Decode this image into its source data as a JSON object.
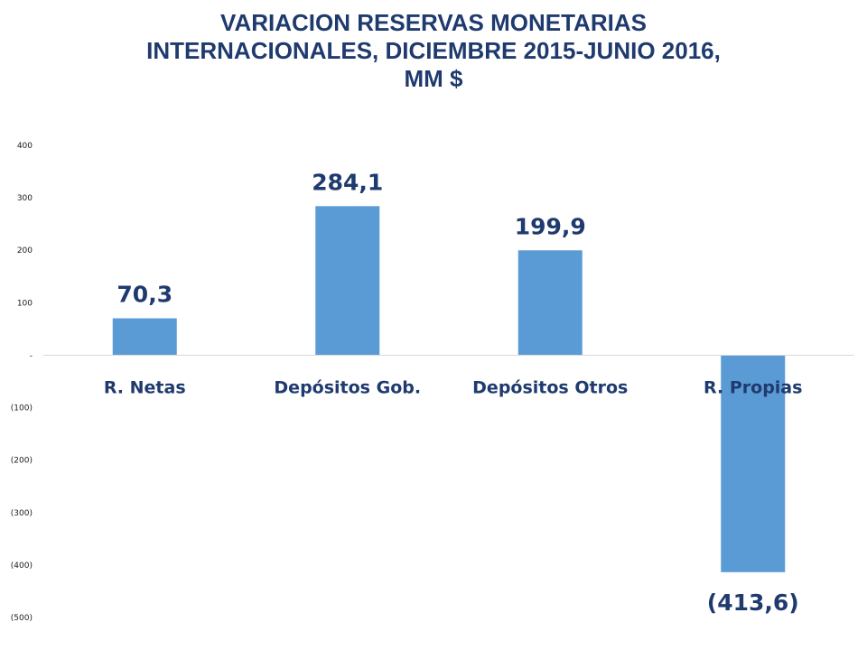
{
  "chart_data": {
    "type": "bar",
    "title_lines": [
      "VARIACION RESERVAS MONETARIAS",
      "INTERNACIONALES, DICIEMBRE 2015-JUNIO 2016,",
      "MM $"
    ],
    "categories": [
      "R. Netas",
      "Depósitos Gob.",
      "Depósitos Otros",
      "R. Propias"
    ],
    "values": [
      70.3,
      284.1,
      199.9,
      -413.6
    ],
    "data_labels": [
      "70,3",
      "284,1",
      "199,9",
      "(413,6)"
    ],
    "ylim": [
      -500,
      400
    ],
    "yticks": [
      400,
      300,
      200,
      100,
      0,
      -100,
      -200,
      -300,
      -400,
      -500
    ],
    "ytick_labels": [
      "400",
      "300",
      "200",
      "100",
      "-",
      "(100)",
      "(200)",
      "(300)",
      "(400)",
      "(500)"
    ],
    "grid": false,
    "colors": {
      "bar": "#5b9bd5",
      "title": "#1f3a6e",
      "labels": "#1f3a6e",
      "axis": "#d9d9d9"
    }
  }
}
